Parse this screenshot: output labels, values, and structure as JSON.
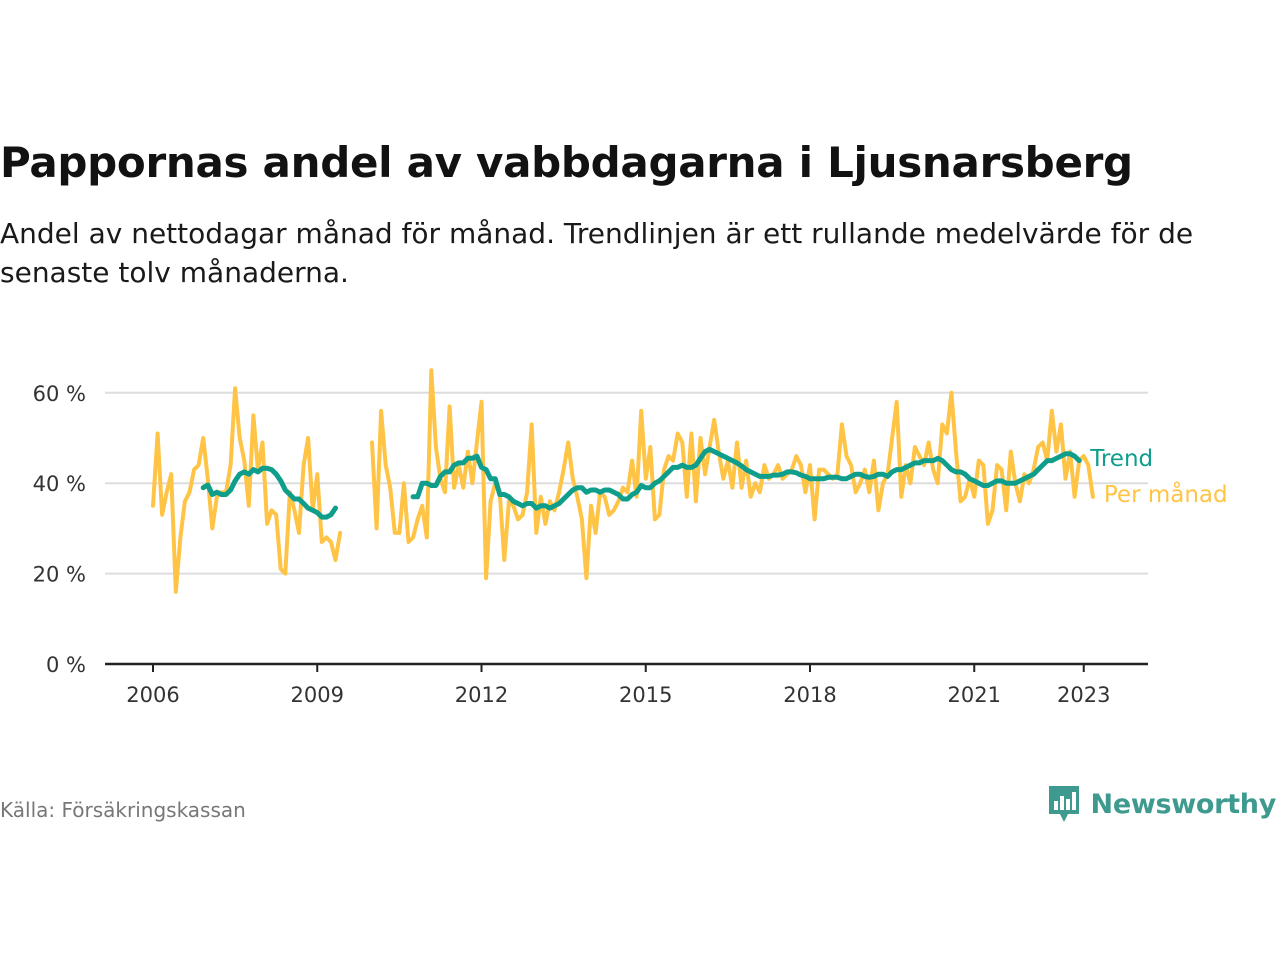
{
  "title": "Pappornas andel av vabbdagarna i Ljusnarsberg",
  "subtitle": "Andel av nettodagar månad för månad. Trendlinjen är ett rullande medelvärde för de senaste tolv månaderna.",
  "source": "Källa: Försäkringskassan",
  "brand": {
    "name": "Newsworthy",
    "logo_icon": "bar-chart-speech-bubble-icon"
  },
  "colors": {
    "monthly": "#ffc445",
    "trend": "#0f9e8b",
    "grid": "#dddddd",
    "axis": "#222222",
    "brand": "#3e9a8f"
  },
  "chart_data": {
    "type": "line",
    "x_axis": {
      "ticks": [
        "2006",
        "2009",
        "2012",
        "2015",
        "2018",
        "2021",
        "2023"
      ],
      "range": [
        "2006-01",
        "2023-12"
      ]
    },
    "y_axis": {
      "ticks": [
        "0 %",
        "20 %",
        "40 %",
        "60 %"
      ],
      "tick_values": [
        0,
        20,
        40,
        60
      ],
      "ylim": [
        0,
        68
      ]
    },
    "grid": true,
    "series": [
      {
        "name": "Per månad",
        "role": "monthly",
        "start": "2006-01",
        "values": [
          35,
          51,
          33,
          38,
          42,
          16,
          28,
          36,
          38,
          43,
          44,
          50,
          41,
          30,
          37,
          38,
          38,
          44,
          61,
          50,
          45,
          35,
          55,
          43,
          49,
          31,
          34,
          33,
          21,
          20,
          38,
          34,
          29,
          44,
          50,
          34,
          42,
          27,
          28,
          27,
          23,
          29,
          null,
          null,
          null,
          null,
          null,
          null,
          49,
          30,
          56,
          44,
          39,
          29,
          29,
          40,
          27,
          28,
          32,
          35,
          28,
          65,
          48,
          41,
          38,
          57,
          39,
          44,
          39,
          47,
          40,
          49,
          58,
          19,
          36,
          40,
          38,
          23,
          36,
          35,
          32,
          33,
          38,
          53,
          29,
          37,
          31,
          36,
          34,
          38,
          43,
          49,
          41,
          37,
          32,
          19,
          35,
          29,
          38,
          37,
          33,
          34,
          36,
          39,
          38,
          45,
          37,
          56,
          41,
          48,
          32,
          33,
          43,
          46,
          45,
          51,
          49,
          37,
          51,
          36,
          50,
          42,
          48,
          54,
          47,
          41,
          45,
          39,
          49,
          39,
          45,
          37,
          40,
          38,
          44,
          41,
          42,
          44,
          41,
          42,
          43,
          46,
          44,
          38,
          44,
          32,
          43,
          43,
          42,
          41,
          42,
          53,
          46,
          44,
          38,
          40,
          43,
          38,
          45,
          34,
          40,
          42,
          50,
          58,
          37,
          44,
          40,
          48,
          46,
          44,
          49,
          43,
          40,
          53,
          51,
          60,
          47,
          36,
          37,
          41,
          37,
          45,
          44,
          31,
          34,
          44,
          43,
          34,
          47,
          40,
          36,
          42,
          40,
          43,
          48,
          49,
          45,
          56,
          47,
          53,
          41,
          47,
          37,
          45,
          46,
          44,
          37
        ]
      },
      {
        "name": "Trend",
        "role": "trend",
        "start": "2006-12",
        "values": [
          39,
          39.6,
          37.5,
          38,
          37.5,
          37.5,
          38.5,
          40.5,
          42,
          42.5,
          42,
          43,
          42.5,
          43.3,
          43.3,
          43,
          42,
          40.5,
          38.5,
          37.5,
          36.5,
          36.5,
          35.5,
          34.5,
          34,
          33.5,
          32.5,
          32.5,
          33,
          34.5,
          null,
          null,
          null,
          null,
          null,
          null,
          null,
          null,
          null,
          null,
          null,
          null,
          null,
          null,
          null,
          null,
          37,
          37,
          40,
          40,
          39.5,
          39.5,
          41.5,
          42.5,
          42.5,
          44,
          44.5,
          44.5,
          45.5,
          45.5,
          46,
          43.5,
          43,
          41,
          41,
          37.5,
          37.5,
          37,
          36,
          35.5,
          35,
          35.5,
          35.5,
          34.5,
          35,
          35,
          34.5,
          35,
          35.5,
          36.5,
          37.5,
          38.5,
          39,
          39,
          38,
          38.5,
          38.5,
          38,
          38.5,
          38.5,
          38,
          37.5,
          36.5,
          36.5,
          37.5,
          38,
          39.5,
          39,
          39,
          40,
          40.5,
          41.5,
          42.5,
          43.5,
          43.5,
          44,
          43.5,
          43.5,
          44,
          45.5,
          47,
          47.5,
          47,
          46.5,
          46,
          45.5,
          45,
          44.5,
          43.8,
          43,
          42.5,
          42,
          41.5,
          41.5,
          41.5,
          41.8,
          41.8,
          42,
          42.5,
          42.5,
          42.3,
          41.8,
          41.5,
          41,
          41,
          41,
          41,
          41.3,
          41.3,
          41.3,
          41,
          41,
          41.5,
          42,
          42,
          41.5,
          41.3,
          41.5,
          42,
          42,
          41.5,
          42.5,
          43,
          43,
          43.5,
          44,
          44.5,
          44.5,
          45,
          45,
          45,
          45.5,
          45,
          44,
          43,
          42.5,
          42.5,
          42,
          41,
          40.5,
          40,
          39.5,
          39.5,
          40,
          40.5,
          40.5,
          40,
          40,
          40,
          40.5,
          41,
          41.5,
          42,
          43,
          44,
          45,
          45,
          45.5,
          46,
          46.5,
          46.5,
          46,
          45
        ]
      }
    ]
  }
}
